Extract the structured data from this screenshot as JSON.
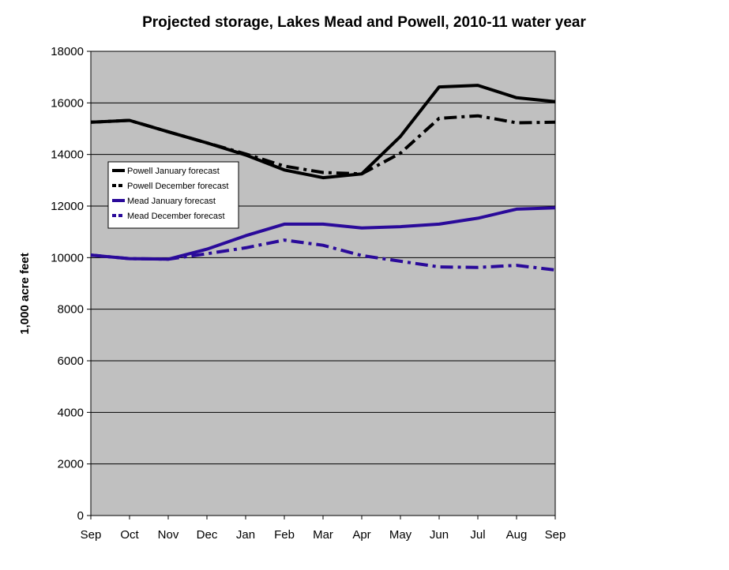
{
  "chart_data": {
    "type": "line",
    "title": "Projected storage, Lakes Mead and Powell, 2010-11 water year",
    "xlabel": "",
    "ylabel": "1,000 acre feet",
    "categories": [
      "Sep",
      "Oct",
      "Nov",
      "Dec",
      "Jan",
      "Feb",
      "Mar",
      "Apr",
      "May",
      "Jun",
      "Jul",
      "Aug",
      "Sep"
    ],
    "ylim": [
      0,
      18000
    ],
    "yticks": [
      0,
      2000,
      4000,
      6000,
      8000,
      10000,
      12000,
      14000,
      16000,
      18000
    ],
    "grid": true,
    "legend_position": "left",
    "plot_background": "#c0c0c0",
    "series": [
      {
        "name": "Powell January forecast",
        "color": "#000000",
        "style": "solid",
        "values": [
          15250,
          15320,
          14880,
          14450,
          13980,
          13400,
          13100,
          13250,
          14700,
          16620,
          16680,
          16200,
          16050
        ]
      },
      {
        "name": "Powell December forecast",
        "color": "#000000",
        "style": "dashdot",
        "values": [
          15250,
          15320,
          14880,
          14450,
          14020,
          13550,
          13300,
          13250,
          14050,
          15400,
          15500,
          15230,
          15250
        ]
      },
      {
        "name": "Mead January forecast",
        "color": "#2a0a9a",
        "style": "solid",
        "values": [
          10100,
          9960,
          9940,
          10330,
          10850,
          11300,
          11300,
          11150,
          11200,
          11300,
          11530,
          11880,
          11930
        ]
      },
      {
        "name": "Mead December forecast",
        "color": "#2a0a9a",
        "style": "dashdot",
        "values": [
          10100,
          9960,
          9940,
          10150,
          10380,
          10680,
          10480,
          10080,
          9860,
          9640,
          9620,
          9700,
          9520
        ]
      }
    ]
  }
}
